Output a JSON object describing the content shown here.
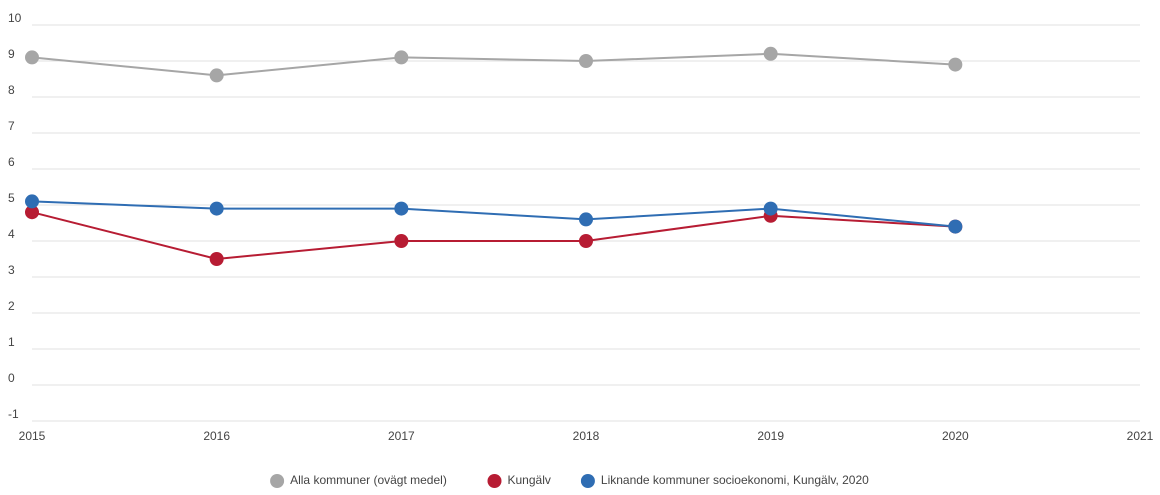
{
  "chart_data": {
    "type": "line",
    "x": [
      2015,
      2016,
      2017,
      2018,
      2019,
      2020
    ],
    "series": [
      {
        "name": "Alla kommuner (ovägt medel)",
        "color": "#a6a6a6",
        "values": [
          9.1,
          8.6,
          9.1,
          9.0,
          9.2,
          8.9
        ]
      },
      {
        "name": "Kungälv",
        "color": "#b71c33",
        "values": [
          4.8,
          3.5,
          4.0,
          4.0,
          4.7,
          4.4
        ]
      },
      {
        "name": "Liknande kommuner socioekonomi, Kungälv, 2020",
        "color": "#2f6db3",
        "values": [
          5.1,
          4.9,
          4.9,
          4.6,
          4.9,
          4.4
        ]
      }
    ],
    "xlim": [
      2015,
      2021
    ],
    "xticks": [
      2015,
      2016,
      2017,
      2018,
      2019,
      2020,
      2021
    ],
    "ylim": [
      -1,
      10
    ],
    "yticks": [
      -1,
      0,
      1,
      2,
      3,
      4,
      5,
      6,
      7,
      8,
      9,
      10
    ],
    "grid": true,
    "legend": "bottom"
  }
}
